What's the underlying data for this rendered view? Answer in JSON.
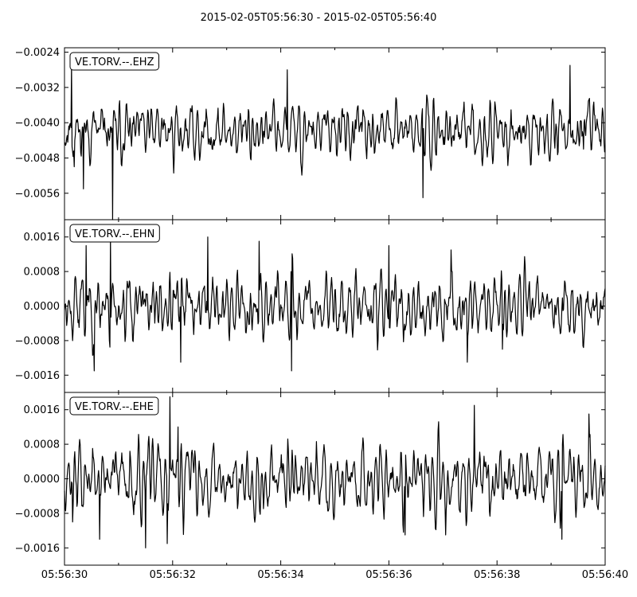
{
  "chart_data": {
    "type": "line",
    "title": "2015-02-05T05:56:30  -  2015-02-05T05:56:40",
    "x_tick_labels": [
      "05:56:30",
      "05:56:32",
      "05:56:34",
      "05:56:36",
      "05:56:38",
      "05:56:40"
    ],
    "xlim_seconds": [
      0,
      10
    ],
    "sample_rate_hz": 100,
    "grid": false,
    "panels": [
      {
        "name": "VE.TORV.--.EHZ",
        "ylim": [
          -0.0062,
          -0.0023
        ],
        "yticks": [
          -0.0024,
          -0.0032,
          -0.004,
          -0.0048,
          -0.0056
        ],
        "ytick_labels": [
          "−0.0024",
          "−0.0032",
          "−0.0040",
          "−0.0048",
          "−0.0056"
        ],
        "waveform": {
          "baseline": -0.0042,
          "amplitude": 0.00045,
          "seed": 11
        },
        "spikes": [
          [
            0.13,
            -0.0027
          ],
          [
            0.18,
            -0.005
          ],
          [
            0.35,
            -0.0055
          ],
          [
            0.89,
            -0.0063
          ],
          [
            4.12,
            -0.0028
          ],
          [
            4.37,
            -0.0049
          ],
          [
            6.63,
            -0.0057
          ],
          [
            9.35,
            -0.0027
          ],
          [
            9.6,
            -0.0046
          ]
        ]
      },
      {
        "name": "VE.TORV.--.EHN",
        "ylim": [
          -0.002,
          0.002
        ],
        "yticks": [
          0.0016,
          0.0008,
          0.0,
          -0.0008,
          -0.0016
        ],
        "ytick_labels": [
          "0.0016",
          "0.0008",
          "0.0000",
          "−0.0008",
          "−0.0016"
        ],
        "waveform": {
          "baseline": 0.0,
          "amplitude": 0.00055,
          "seed": 23
        },
        "spikes": [
          [
            0.4,
            0.0014
          ],
          [
            0.55,
            -0.0015
          ],
          [
            0.85,
            0.0016
          ],
          [
            2.15,
            -0.0013
          ],
          [
            2.65,
            0.0016
          ],
          [
            3.6,
            0.0015
          ],
          [
            4.2,
            -0.0015
          ],
          [
            6.0,
            0.0014
          ],
          [
            7.15,
            0.0013
          ],
          [
            7.45,
            -0.0013
          ],
          [
            8.1,
            -0.001
          ]
        ]
      },
      {
        "name": "VE.TORV.--.EHE",
        "ylim": [
          -0.002,
          0.002
        ],
        "yticks": [
          0.0016,
          0.0008,
          0.0,
          -0.0008,
          -0.0016
        ],
        "ytick_labels": [
          "0.0016",
          "0.0008",
          "0.0000",
          "−0.0008",
          "−0.0016"
        ],
        "waveform": {
          "baseline": 0.0,
          "amplitude": 0.0006,
          "seed": 37
        },
        "spikes": [
          [
            0.15,
            -0.001
          ],
          [
            0.65,
            -0.0014
          ],
          [
            1.5,
            -0.0016
          ],
          [
            1.9,
            -0.0015
          ],
          [
            1.95,
            0.0019
          ],
          [
            2.1,
            0.0012
          ],
          [
            6.3,
            -0.0013
          ],
          [
            7.05,
            -0.0013
          ],
          [
            7.58,
            0.0017
          ],
          [
            9.2,
            -0.0014
          ],
          [
            9.7,
            0.0015
          ]
        ]
      }
    ]
  }
}
